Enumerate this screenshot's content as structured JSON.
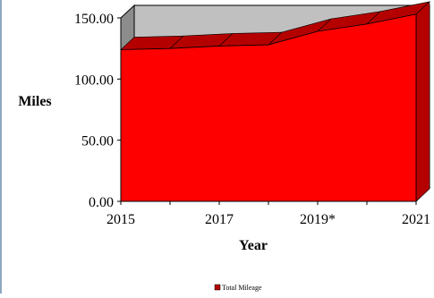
{
  "chart_data": {
    "type": "area",
    "title": "",
    "xlabel": "Year",
    "ylabel": "Miles",
    "x": [
      2015,
      2016,
      2017,
      2018,
      2019,
      2020,
      2021
    ],
    "x_tick_labels": [
      "2015",
      "2017",
      "2019*",
      "2021"
    ],
    "y_tick_labels": [
      "0.00",
      "50.00",
      "100.00",
      "150.00"
    ],
    "ylim": [
      0,
      150
    ],
    "grid": false,
    "three_d": true,
    "legend_position": "bottom",
    "series": [
      {
        "name": "Total Mileage",
        "values": [
          124,
          125,
          127,
          128,
          139,
          145,
          153
        ],
        "color": "#ff0000",
        "side_color": "#b50000"
      }
    ]
  }
}
